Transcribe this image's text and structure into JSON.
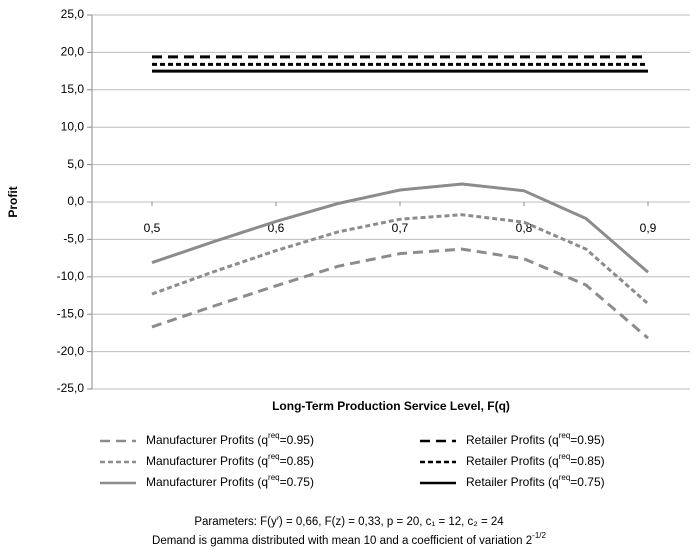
{
  "chart_data": {
    "type": "line",
    "y_label": "Profit",
    "x_label": "Long-Term Production Service Level, F(q)",
    "x": [
      0.5,
      0.55,
      0.6,
      0.65,
      0.7,
      0.75,
      0.8,
      0.85,
      0.9
    ],
    "xlim": [
      0.5,
      0.9
    ],
    "xticks": [
      {
        "value": 0.5,
        "label": "0,5"
      },
      {
        "value": 0.6,
        "label": "0,6"
      },
      {
        "value": 0.7,
        "label": "0,7"
      },
      {
        "value": 0.8,
        "label": "0,8"
      },
      {
        "value": 0.9,
        "label": "0,9"
      }
    ],
    "ylim": [
      -25,
      25
    ],
    "yticks": [
      {
        "value": -25,
        "label": "-25,0"
      },
      {
        "value": -20,
        "label": "-20,0"
      },
      {
        "value": -15,
        "label": "-15,0"
      },
      {
        "value": -10,
        "label": "-10,0"
      },
      {
        "value": -5,
        "label": "-5,0"
      },
      {
        "value": 0,
        "label": "0,0"
      },
      {
        "value": 5,
        "label": "5,0"
      },
      {
        "value": 10,
        "label": "10,0"
      },
      {
        "value": 15,
        "label": "15,0"
      },
      {
        "value": 20,
        "label": "20,0"
      },
      {
        "value": 25,
        "label": "25,0"
      }
    ],
    "grid": true,
    "series": [
      {
        "name": "Manufacturer Profits (qreq=0.95)",
        "color": "#8c8c8c",
        "dash": "long",
        "values": [
          -16.7,
          -13.9,
          -11.2,
          -8.6,
          -6.9,
          -6.3,
          -7.6,
          -11.1,
          -18.2
        ]
      },
      {
        "name": "Retailer Profits (qreq=0.95)",
        "color": "#000000",
        "dash": "long",
        "values": [
          19.4,
          19.4,
          19.4,
          19.4,
          19.4,
          19.4,
          19.4,
          19.4,
          19.4
        ]
      },
      {
        "name": "Manufacturer Profits (qreq=0.85)",
        "color": "#8c8c8c",
        "dash": "short",
        "values": [
          -12.3,
          -9.3,
          -6.5,
          -4.0,
          -2.3,
          -1.7,
          -2.7,
          -6.3,
          -13.6
        ]
      },
      {
        "name": "Retailer Profits (qreq=0.85)",
        "color": "#000000",
        "dash": "short",
        "values": [
          18.4,
          18.4,
          18.4,
          18.4,
          18.4,
          18.4,
          18.4,
          18.4,
          18.4
        ]
      },
      {
        "name": "Manufacturer Profits (qreq=0.75)",
        "color": "#8c8c8c",
        "dash": "solid",
        "values": [
          -8.1,
          -5.3,
          -2.6,
          -0.2,
          1.6,
          2.4,
          1.5,
          -2.2,
          -9.4
        ]
      },
      {
        "name": "Retailer Profits (qreq=0.75)",
        "color": "#000000",
        "dash": "solid",
        "values": [
          17.5,
          17.5,
          17.5,
          17.5,
          17.5,
          17.5,
          17.5,
          17.5,
          17.5
        ]
      }
    ],
    "notes": [
      {
        "text": "Parameters: F(y′) = 0,66, F(z) = 0,33, p = 20, c₁ = 12, c₂ = 24"
      },
      {
        "text": "Demand is gamma distributed with mean 10 and a coefficient of variation 2",
        "sup": "-1/2"
      }
    ]
  }
}
